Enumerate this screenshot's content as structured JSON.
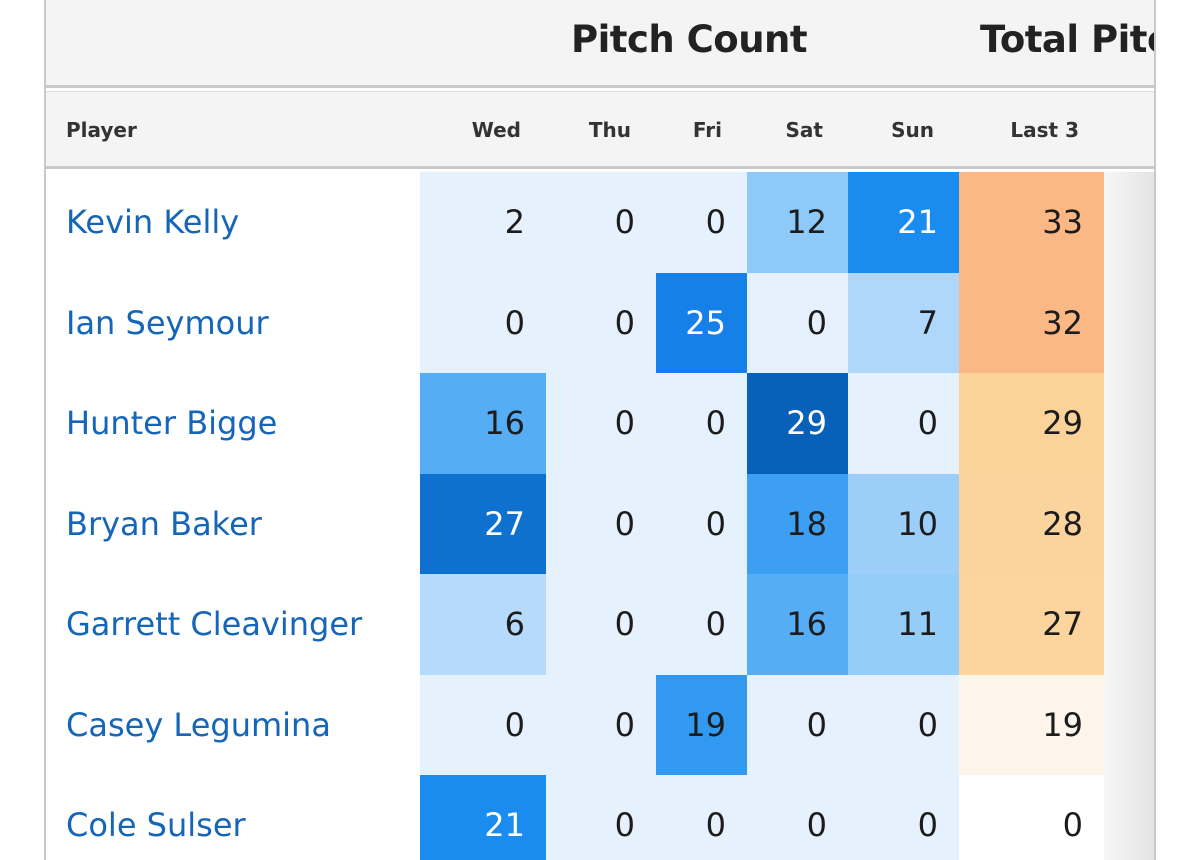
{
  "header": {
    "groups": [
      "Pitch Count",
      "Total Pitc"
    ]
  },
  "table": {
    "columns": [
      "Player",
      "Wed",
      "Thu",
      "Fri",
      "Sat",
      "Sun",
      "Last 3"
    ],
    "rows": [
      [
        "Kevin Kelly",
        2,
        0,
        0,
        12,
        21,
        33
      ],
      [
        "Ian Seymour",
        0,
        0,
        25,
        0,
        7,
        32
      ],
      [
        "Hunter Bigge",
        16,
        0,
        0,
        29,
        0,
        29
      ],
      [
        "Bryan Baker",
        27,
        0,
        0,
        18,
        10,
        28
      ],
      [
        "Garrett Cleavinger",
        6,
        0,
        0,
        16,
        11,
        27
      ],
      [
        "Casey Legumina",
        0,
        0,
        19,
        0,
        0,
        19
      ],
      [
        "Cole Sulser",
        21,
        0,
        0,
        0,
        0,
        0
      ]
    ]
  }
}
